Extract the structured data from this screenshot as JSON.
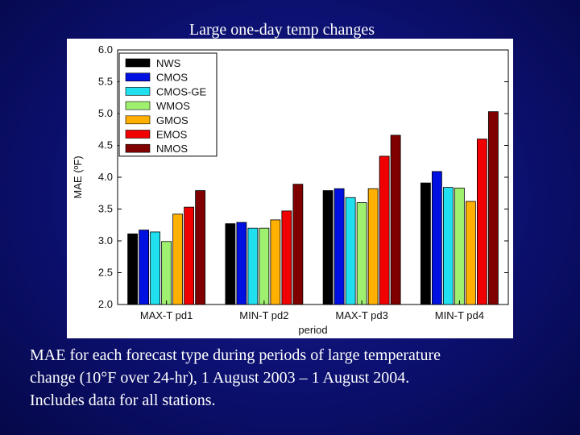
{
  "slide": {
    "title": "Large one-day temp changes",
    "caption_lines": [
      "MAE for each forecast type during periods of large temperature",
      "change (10°F over 24-hr), 1 August 2003 – 1 August 2004.",
      "Includes data for all stations."
    ]
  },
  "chart_data": {
    "type": "bar",
    "title": "Large one-day temp changes",
    "xlabel": "period",
    "ylabel": "MAE (ºF)",
    "ylim": [
      2.0,
      6.0
    ],
    "yticks": [
      "2.0",
      "2.5",
      "3.0",
      "3.5",
      "4.0",
      "4.5",
      "5.0",
      "5.5",
      "6.0"
    ],
    "categories": [
      "MAX-T pd1",
      "MIN-T pd2",
      "MAX-T pd3",
      "MIN-T pd4"
    ],
    "legend_position": "top-left",
    "grid": false,
    "series": [
      {
        "name": "NWS",
        "color": "#000000",
        "values": [
          3.11,
          3.27,
          3.79,
          3.91
        ]
      },
      {
        "name": "CMOS",
        "color": "#0010e0",
        "values": [
          3.17,
          3.29,
          3.82,
          4.09
        ]
      },
      {
        "name": "CMOS-GE",
        "color": "#20e0f0",
        "values": [
          3.14,
          3.2,
          3.68,
          3.84
        ]
      },
      {
        "name": "WMOS",
        "color": "#a0f070",
        "values": [
          2.99,
          3.2,
          3.6,
          3.83
        ]
      },
      {
        "name": "GMOS",
        "color": "#ffb000",
        "values": [
          3.42,
          3.33,
          3.82,
          3.62
        ]
      },
      {
        "name": "EMOS",
        "color": "#f00000",
        "values": [
          3.53,
          3.47,
          4.33,
          4.6
        ]
      },
      {
        "name": "NMOS",
        "color": "#800000",
        "values": [
          3.79,
          3.89,
          4.66,
          5.03
        ]
      }
    ]
  }
}
